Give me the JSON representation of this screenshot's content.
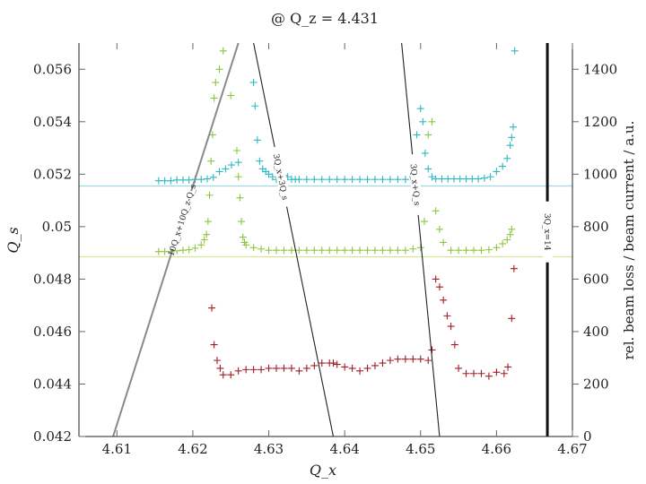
{
  "chart_data": {
    "type": "scatter",
    "title": "@ Q_z = 4.431",
    "xlabel": "Q_x",
    "ylabel": "Q_s",
    "ylabel2": "rel. beam loss / beam current / a.u.",
    "xlim": [
      4.605,
      4.67
    ],
    "ylim": [
      0.042,
      0.057
    ],
    "ylim2": [
      0,
      1500
    ],
    "x_ticks": [
      {
        "value": 4.61,
        "label": "4.61"
      },
      {
        "value": 4.62,
        "label": "4.62"
      },
      {
        "value": 4.63,
        "label": "4.63"
      },
      {
        "value": 4.64,
        "label": "4.64"
      },
      {
        "value": 4.65,
        "label": "4.65"
      },
      {
        "value": 4.66,
        "label": "4.66"
      },
      {
        "value": 4.67,
        "label": "4.67"
      }
    ],
    "y_ticks": [
      {
        "value": 0.042,
        "label": "0.042"
      },
      {
        "value": 0.044,
        "label": "0.044"
      },
      {
        "value": 0.046,
        "label": "0.046"
      },
      {
        "value": 0.048,
        "label": "0.048"
      },
      {
        "value": 0.05,
        "label": "0.05"
      },
      {
        "value": 0.052,
        "label": "0.052"
      },
      {
        "value": 0.054,
        "label": "0.054"
      },
      {
        "value": 0.056,
        "label": "0.056"
      }
    ],
    "y2_ticks": [
      {
        "value": 0,
        "label": "0"
      },
      {
        "value": 200,
        "label": "200"
      },
      {
        "value": 400,
        "label": "400"
      },
      {
        "value": 600,
        "label": "600"
      },
      {
        "value": 800,
        "label": "800"
      },
      {
        "value": 1000,
        "label": "1000"
      },
      {
        "value": 1200,
        "label": "1200"
      },
      {
        "value": 1400,
        "label": "1400"
      }
    ],
    "hlines": [
      {
        "y": 0.05155,
        "color": "#9fd9e6"
      },
      {
        "y": 0.04885,
        "color": "#d8e39c"
      }
    ],
    "resonance_lines": [
      {
        "label": "10Q_x+10Q_z-Q_s",
        "x1": 4.6095,
        "y1": 0.042,
        "x2": 4.626,
        "y2": 0.057,
        "color": "#8a8a8a",
        "width": 2
      },
      {
        "label": "3Q_x+3Q_s",
        "x1": 4.628,
        "y1": 0.057,
        "x2": 4.6385,
        "y2": 0.042,
        "color": "#222222",
        "width": 1.1
      },
      {
        "label": "3Q_x+Q_s",
        "x1": 4.6475,
        "y1": 0.057,
        "x2": 4.6525,
        "y2": 0.042,
        "color": "#222222",
        "width": 1.1
      }
    ],
    "vertical_resonance": {
      "label": "3Q_x=14",
      "x": 4.6667,
      "color": "#111111",
      "width": 3
    },
    "series": [
      {
        "axis": "left",
        "color": "#2fb8c2",
        "x": [
          4.6155,
          4.6163,
          4.6171,
          4.6179,
          4.6187,
          4.6195,
          4.6203,
          4.6211,
          4.6219,
          4.6227,
          4.6235,
          4.6243,
          4.6251,
          4.626,
          4.628,
          4.6282,
          4.6285,
          4.6288,
          4.6292,
          4.6296,
          4.63,
          4.6305,
          4.631,
          4.6315,
          4.632,
          4.6325,
          4.633,
          4.6335,
          4.634,
          4.635,
          4.636,
          4.637,
          4.638,
          4.639,
          4.64,
          4.641,
          4.642,
          4.643,
          4.644,
          4.645,
          4.646,
          4.647,
          4.648,
          4.649,
          4.6495,
          4.65,
          4.6503,
          4.6506,
          4.651,
          4.6515,
          4.652,
          4.6528,
          4.6536,
          4.6544,
          4.6552,
          4.656,
          4.6568,
          4.6576,
          4.6584,
          4.6592,
          4.66,
          4.6608,
          4.6614,
          4.6618,
          4.662,
          4.6622,
          4.6624
        ],
        "y": [
          0.05175,
          0.05175,
          0.05175,
          0.05178,
          0.05178,
          0.05178,
          0.0518,
          0.0518,
          0.05182,
          0.05188,
          0.0521,
          0.0522,
          0.05235,
          0.05245,
          0.0555,
          0.0546,
          0.0533,
          0.0525,
          0.0522,
          0.0521,
          0.052,
          0.0519,
          0.0518,
          0.05185,
          0.05195,
          0.0519,
          0.0518,
          0.0518,
          0.0518,
          0.0518,
          0.0518,
          0.0518,
          0.0518,
          0.0518,
          0.0518,
          0.0518,
          0.0518,
          0.0518,
          0.0518,
          0.0518,
          0.0518,
          0.0518,
          0.0518,
          0.0519,
          0.0535,
          0.0545,
          0.054,
          0.0528,
          0.0522,
          0.0519,
          0.05182,
          0.05182,
          0.05182,
          0.05182,
          0.05182,
          0.05182,
          0.05182,
          0.05182,
          0.05185,
          0.0519,
          0.0521,
          0.0523,
          0.0526,
          0.0531,
          0.0534,
          0.0538,
          0.0567
        ]
      },
      {
        "axis": "left",
        "color": "#8cc63f",
        "x": [
          4.6155,
          4.6163,
          4.6171,
          4.6179,
          4.6187,
          4.6195,
          4.6203,
          4.6211,
          4.6215,
          4.6218,
          4.622,
          4.6222,
          4.6224,
          4.6226,
          4.6228,
          4.623,
          4.6235,
          4.624,
          4.625,
          4.6258,
          4.626,
          4.6262,
          4.6264,
          4.6266,
          4.6268,
          4.627,
          4.628,
          4.629,
          4.63,
          4.631,
          4.632,
          4.633,
          4.634,
          4.635,
          4.636,
          4.637,
          4.638,
          4.639,
          4.64,
          4.641,
          4.642,
          4.643,
          4.644,
          4.645,
          4.646,
          4.647,
          4.648,
          4.649,
          4.65,
          4.6505,
          4.651,
          4.6515,
          4.652,
          4.6525,
          4.653,
          4.654,
          4.655,
          4.656,
          4.657,
          4.658,
          4.659,
          4.66,
          4.6608,
          4.6614,
          4.6618,
          4.662
        ],
        "y": [
          0.04905,
          0.04905,
          0.04905,
          0.04908,
          0.0491,
          0.04912,
          0.04918,
          0.0493,
          0.0495,
          0.0497,
          0.0502,
          0.0512,
          0.0525,
          0.0535,
          0.0549,
          0.0555,
          0.056,
          0.0567,
          0.055,
          0.0529,
          0.0519,
          0.0511,
          0.0502,
          0.0496,
          0.0494,
          0.0493,
          0.0492,
          0.04915,
          0.0491,
          0.0491,
          0.0491,
          0.0491,
          0.0491,
          0.0491,
          0.0491,
          0.0491,
          0.0491,
          0.0491,
          0.0491,
          0.0491,
          0.0491,
          0.0491,
          0.0491,
          0.0491,
          0.0491,
          0.0491,
          0.0491,
          0.04915,
          0.0492,
          0.0502,
          0.0535,
          0.054,
          0.0506,
          0.0499,
          0.0494,
          0.0491,
          0.0491,
          0.0491,
          0.0491,
          0.0491,
          0.04912,
          0.0492,
          0.04935,
          0.0495,
          0.0497,
          0.0499
        ]
      },
      {
        "axis": "left",
        "color": "#a31d24",
        "x": [
          4.6225,
          4.6228,
          4.6232,
          4.6236,
          4.624,
          4.625,
          4.626,
          4.627,
          4.628,
          4.629,
          4.63,
          4.631,
          4.632,
          4.633,
          4.634,
          4.635,
          4.636,
          4.637,
          4.638,
          4.6385,
          4.639,
          4.64,
          4.641,
          4.642,
          4.643,
          4.644,
          4.645,
          4.646,
          4.647,
          4.648,
          4.649,
          4.65,
          4.651,
          4.6515,
          4.652,
          4.6525,
          4.653,
          4.6535,
          4.654,
          4.6545,
          4.655,
          4.656,
          4.657,
          4.658,
          4.659,
          4.66,
          4.661,
          4.6615,
          4.662,
          4.6623
        ],
        "y": [
          0.0469,
          0.0455,
          0.0449,
          0.0446,
          0.04435,
          0.04435,
          0.0445,
          0.04455,
          0.04455,
          0.04455,
          0.0446,
          0.0446,
          0.0446,
          0.0446,
          0.0445,
          0.0446,
          0.0447,
          0.0448,
          0.0448,
          0.0448,
          0.04475,
          0.04465,
          0.0446,
          0.0445,
          0.0446,
          0.0447,
          0.0448,
          0.0449,
          0.04495,
          0.04495,
          0.04495,
          0.04495,
          0.0449,
          0.0453,
          0.048,
          0.0477,
          0.0472,
          0.0466,
          0.0462,
          0.0455,
          0.0446,
          0.0444,
          0.0444,
          0.0444,
          0.0443,
          0.04445,
          0.0444,
          0.04465,
          0.0465,
          0.0484
        ]
      }
    ]
  }
}
